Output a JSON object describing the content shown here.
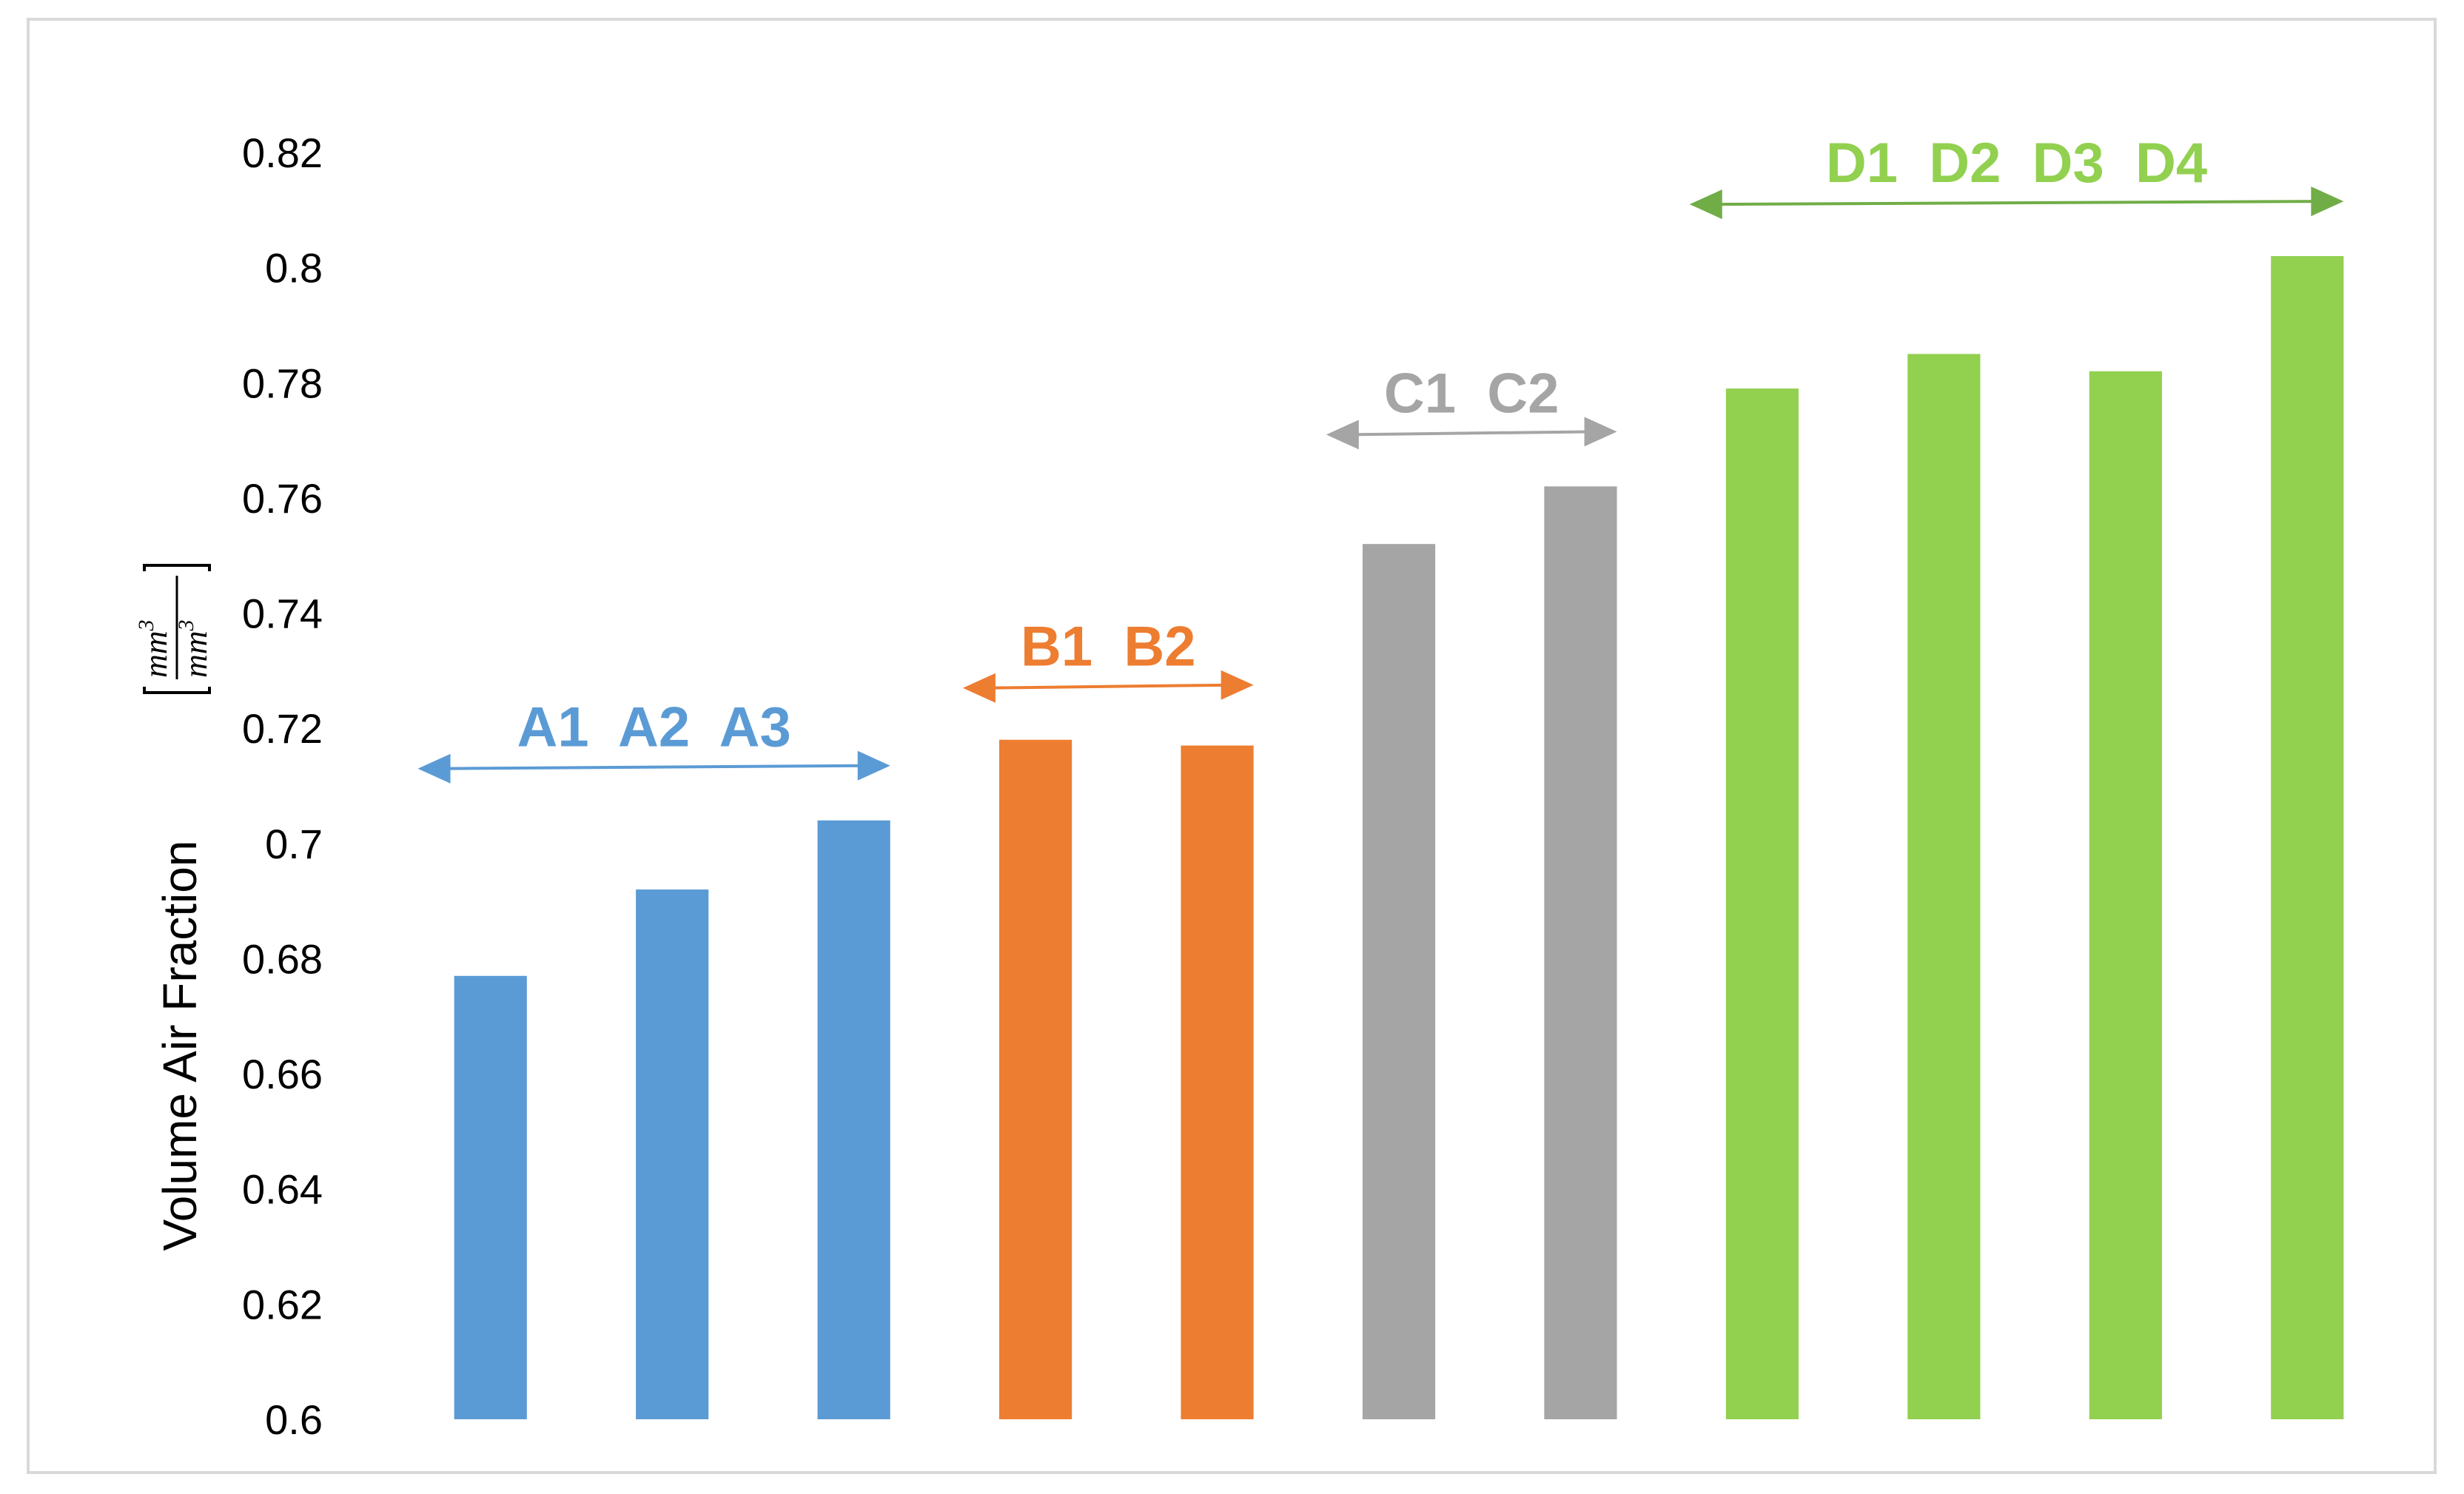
{
  "chart_data": {
    "type": "bar",
    "categories": [
      "A1",
      "A2",
      "A3",
      "B1",
      "B2",
      "C1",
      "C2",
      "D1",
      "D2",
      "D3",
      "D4"
    ],
    "values": [
      0.677,
      0.692,
      0.704,
      0.718,
      0.717,
      0.752,
      0.762,
      0.779,
      0.785,
      0.782,
      0.802
    ],
    "ylabel": "Volume Air Fraction",
    "yunit": {
      "numerator": "mm",
      "denominator": "mm",
      "exponent": "3"
    },
    "ylim": [
      0.6,
      0.82
    ],
    "yticks": [
      "0.6",
      "0.62",
      "0.64",
      "0.66",
      "0.68",
      "0.7",
      "0.72",
      "0.74",
      "0.76",
      "0.78",
      "0.8",
      "0.82"
    ],
    "grid": false,
    "legend": "none",
    "groups": [
      {
        "label": "A1  A2  A3",
        "members": [
          "A1",
          "A2",
          "A3"
        ],
        "color": "#5b9bd5"
      },
      {
        "label": "B1  B2",
        "members": [
          "B1",
          "B2"
        ],
        "color": "#ed7d31"
      },
      {
        "label": "C1  C2",
        "members": [
          "C1",
          "C2"
        ],
        "color": "#a5a5a5"
      },
      {
        "label": "D1  D2  D3  D4",
        "members": [
          "D1",
          "D2",
          "D3",
          "D4"
        ],
        "color": "#92d050"
      }
    ],
    "group_arrow_colors": [
      "#5b9bd5",
      "#ed7d31",
      "#a5a5a5",
      "#70ad47"
    ]
  }
}
